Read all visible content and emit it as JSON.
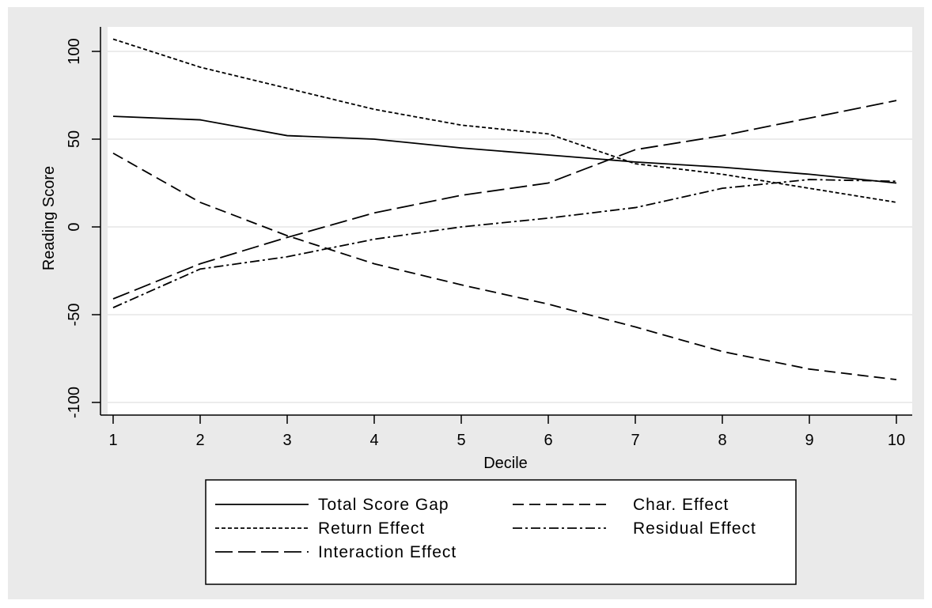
{
  "chart_data": {
    "type": "line",
    "title": "",
    "xlabel": "Decile",
    "ylabel": "Reading Score",
    "xlim": [
      1,
      10
    ],
    "ylim": [
      -100,
      100
    ],
    "x_ticks": [
      "1",
      "2",
      "3",
      "4",
      "5",
      "6",
      "7",
      "8",
      "9",
      "10"
    ],
    "y_ticks": [
      "-100",
      "-50",
      "0",
      "50",
      "100"
    ],
    "grid": "horizontal",
    "legend_position": "bottom",
    "x": [
      1,
      2,
      3,
      4,
      5,
      6,
      7,
      8,
      9,
      10
    ],
    "series": [
      {
        "name": "Total Score Gap",
        "dash": "solid",
        "values": [
          63,
          61,
          52,
          50,
          45,
          41,
          37,
          34,
          30,
          25
        ]
      },
      {
        "name": "Char. Effect",
        "dash": "dash",
        "values": [
          42,
          14,
          -5,
          -21,
          -33,
          -44,
          -57,
          -71,
          -81,
          -87
        ]
      },
      {
        "name": "Return Effect",
        "dash": "short-dash",
        "values": [
          107,
          91,
          79,
          67,
          58,
          53,
          36,
          30,
          22,
          14
        ]
      },
      {
        "name": "Residual Effect",
        "dash": "dash-dot",
        "values": [
          -46,
          -24,
          -17,
          -7,
          0,
          5,
          11,
          22,
          27,
          26
        ]
      },
      {
        "name": "Interaction Effect",
        "dash": "long-dash",
        "values": [
          -41,
          -21,
          -6,
          8,
          18,
          25,
          44,
          52,
          62,
          72
        ]
      }
    ]
  }
}
